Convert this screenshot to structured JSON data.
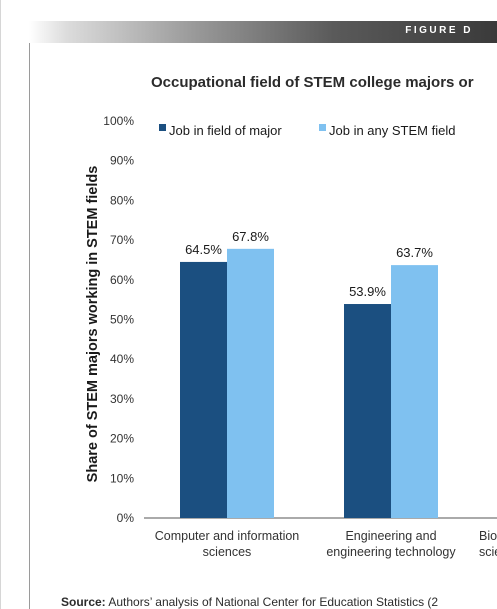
{
  "figure_label": "FIGURE D",
  "source": {
    "label": "Source:",
    "text": "Authors’ analysis of National Center for Education Statistics (2"
  },
  "chart_data": {
    "type": "bar",
    "title": "Occupational field of STEM college majors or",
    "ylabel": "Share of STEM majors working in STEM fields",
    "xlabel": "",
    "ylim": [
      0,
      100
    ],
    "yticks": [
      0,
      10,
      20,
      30,
      40,
      50,
      60,
      70,
      80,
      90,
      100
    ],
    "ytick_labels": [
      "0%",
      "10%",
      "20%",
      "30%",
      "40%",
      "50%",
      "60%",
      "70%",
      "80%",
      "90%",
      "100%"
    ],
    "grid": false,
    "legend_position": "top",
    "categories": [
      [
        "Computer and information",
        "sciences"
      ],
      [
        "Engineering and",
        "engineering technology"
      ],
      [
        "Bio",
        "scie"
      ]
    ],
    "series": [
      {
        "name": "Job in field of major",
        "color": "#1b4f80",
        "values": [
          64.5,
          53.9,
          null
        ],
        "labels": [
          "64.5%",
          "53.9%",
          ""
        ]
      },
      {
        "name": "Job in any STEM field",
        "color": "#7fc1f0",
        "values": [
          67.8,
          63.7,
          null
        ],
        "labels": [
          "67.8%",
          "63.7%",
          ""
        ]
      }
    ]
  }
}
